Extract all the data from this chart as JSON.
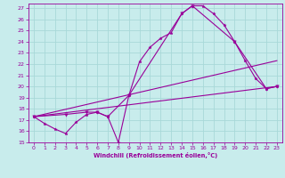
{
  "xlabel": "Windchill (Refroidissement éolien,°C)",
  "bg_color": "#c8ecec",
  "grid_color": "#a8d8d8",
  "line_color": "#990099",
  "xlim": [
    -0.5,
    23.5
  ],
  "ylim": [
    15,
    27.4
  ],
  "xticks": [
    0,
    1,
    2,
    3,
    4,
    5,
    6,
    7,
    8,
    9,
    10,
    11,
    12,
    13,
    14,
    15,
    16,
    17,
    18,
    19,
    20,
    21,
    22,
    23
  ],
  "yticks": [
    15,
    16,
    17,
    18,
    19,
    20,
    21,
    22,
    23,
    24,
    25,
    26,
    27
  ],
  "line1_x": [
    0,
    1,
    2,
    3,
    4,
    5,
    6,
    7,
    8,
    9,
    10,
    11,
    12,
    13,
    14,
    15,
    16,
    17,
    18,
    19,
    20,
    21,
    22,
    23
  ],
  "line1_y": [
    17.3,
    16.7,
    16.2,
    15.8,
    16.8,
    17.5,
    17.7,
    17.3,
    15.0,
    19.2,
    22.2,
    23.5,
    24.3,
    24.8,
    26.5,
    27.2,
    27.2,
    26.5,
    25.5,
    24.0,
    22.3,
    20.7,
    19.8,
    20.0
  ],
  "line2_x": [
    0,
    3,
    5,
    6,
    7,
    9,
    14,
    15,
    19,
    22,
    23
  ],
  "line2_y": [
    17.3,
    17.5,
    17.7,
    17.7,
    17.3,
    19.2,
    26.5,
    27.2,
    24.0,
    19.8,
    20.0
  ],
  "line3_x": [
    0,
    23
  ],
  "line3_y": [
    17.3,
    22.3
  ],
  "line4_x": [
    0,
    23
  ],
  "line4_y": [
    17.3,
    20.0
  ]
}
